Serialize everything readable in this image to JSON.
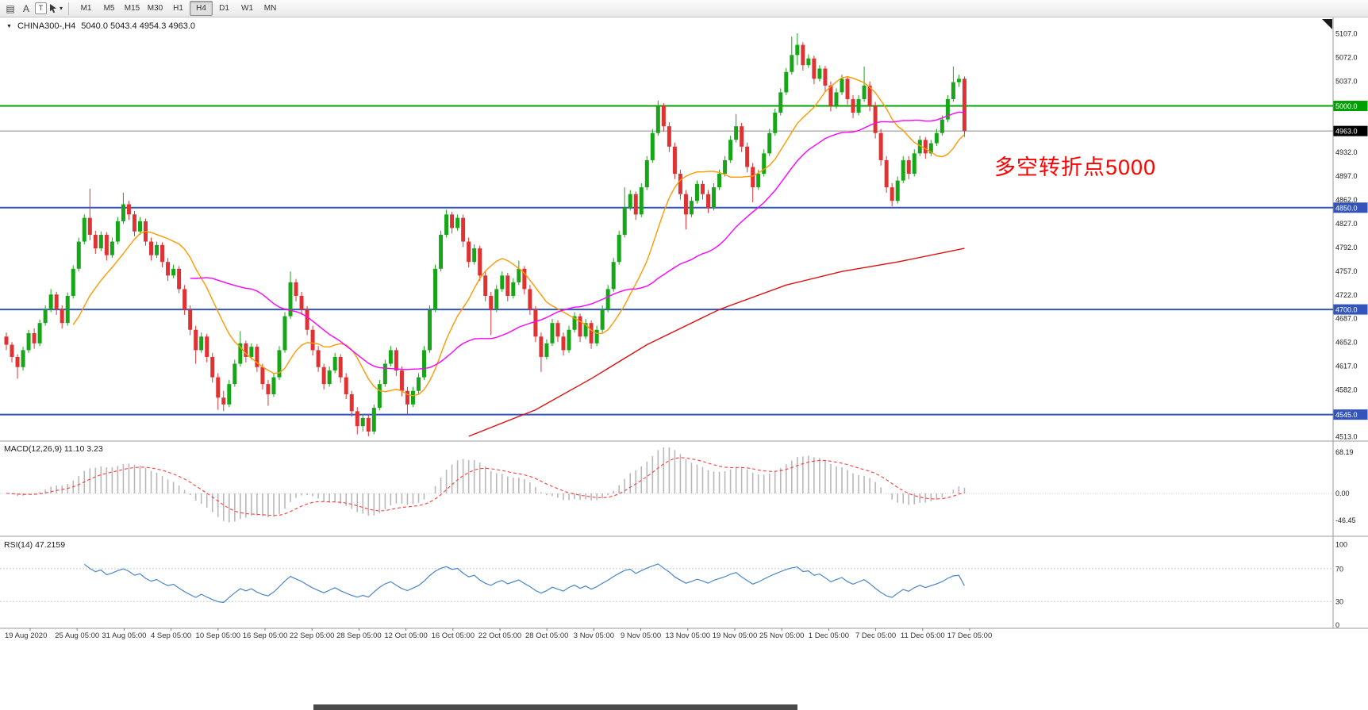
{
  "toolbar": {
    "icon_a": "A",
    "icon_t": "T",
    "timeframes": [
      "M1",
      "M5",
      "M15",
      "M30",
      "H1",
      "H4",
      "D1",
      "W1",
      "MN"
    ],
    "active_timeframe": "H4"
  },
  "icons": {
    "collapse_triangle": "▼",
    "dropdown_arrow": "▾",
    "chart_list": "▤"
  },
  "chart_header": {
    "symbol": "CHINA300-,H4",
    "ohlc": "5040.0 5043.4 4954.3 4963.0"
  },
  "annotation": {
    "text": "多空转折点5000",
    "color": "#FF0000"
  },
  "chart_data": {
    "type": "candlestick",
    "title": "CHINA300-,H4",
    "timeframe": "H4",
    "last_ohlc": {
      "open": 5040.0,
      "high": 5043.4,
      "low": 4954.3,
      "close": 4963.0
    },
    "ylim": [
      4513,
      5107
    ],
    "colors": {
      "up": "#17a617",
      "down": "#e03232",
      "ma_fast": "#ff9900",
      "ma_mid": "#ff00ff",
      "ma_slow": "#dd1111",
      "macd_hist": "#b8b8b8",
      "macd_signal": "#ff3b3b",
      "rsi": "#4a86c8",
      "level_green": "#00a000",
      "level_blue": "#3355bb",
      "current_line": "#8c8c8c"
    },
    "price_ticks": [
      5107.0,
      5072.0,
      5037.0,
      4932.0,
      4897.0,
      4862.0,
      4827.0,
      4792.0,
      4757.0,
      4722.0,
      4687.0,
      4652.0,
      4617.0,
      4582.0,
      4513.0
    ],
    "hlines": [
      {
        "price": 5000.0,
        "label": "5000.0",
        "color": "#00a000",
        "label_bg": "#00a000",
        "width": 2,
        "type": "level"
      },
      {
        "price": 4963.0,
        "label": "4963.0",
        "color": "#8c8c8c",
        "label_bg": "#000000",
        "width": 1,
        "type": "current"
      },
      {
        "price": 4850.0,
        "label": "4850.0",
        "color": "#3355bb",
        "label_bg": "#3355bb",
        "width": 2,
        "type": "level"
      },
      {
        "price": 4700.0,
        "label": "4700.0",
        "color": "#3355bb",
        "label_bg": "#3355bb",
        "width": 2,
        "type": "level"
      },
      {
        "price": 4545.0,
        "label": "4545.0",
        "color": "#3355bb",
        "label_bg": "#3355bb",
        "width": 2,
        "type": "level"
      }
    ],
    "ma": [
      {
        "name": "ma-fast",
        "period": 13,
        "color_key": "ma_fast"
      },
      {
        "name": "ma-mid",
        "period": 34,
        "color_key": "ma_mid"
      }
    ],
    "ma_slow_points": [
      [
        83,
        4513
      ],
      [
        95,
        4552
      ],
      [
        105,
        4598
      ],
      [
        115,
        4648
      ],
      [
        128,
        4700
      ],
      [
        140,
        4736
      ],
      [
        150,
        4756
      ],
      [
        160,
        4770
      ],
      [
        172,
        4790
      ]
    ],
    "indicators": [
      {
        "name": "MACD",
        "label": "MACD(12,26,9) 11.10 3.23",
        "params": [
          12,
          26,
          9
        ],
        "axis": [
          68.19,
          0.0,
          -46.45
        ]
      },
      {
        "name": "RSI",
        "label": "RSI(14) 47.2159",
        "period": 14,
        "axis": [
          100,
          70,
          30,
          0
        ],
        "levels": [
          70,
          30
        ]
      }
    ],
    "time_axis": [
      "19 Aug 2020",
      "25 Aug 05:00",
      "31 Aug 05:00",
      "4 Sep 05:00",
      "10 Sep 05:00",
      "16 Sep 05:00",
      "22 Sep 05:00",
      "28 Sep 05:00",
      "12 Oct 05:00",
      "16 Oct 05:00",
      "22 Oct 05:00",
      "28 Oct 05:00",
      "3 Nov 05:00",
      "9 Nov 05:00",
      "13 Nov 05:00",
      "19 Nov 05:00",
      "25 Nov 05:00",
      "1 Dec 05:00",
      "7 Dec 05:00",
      "11 Dec 05:00",
      "17 Dec 05:00"
    ],
    "candles": [
      [
        4660,
        4666,
        4640,
        4648
      ],
      [
        4648,
        4652,
        4622,
        4630
      ],
      [
        4630,
        4634,
        4598,
        4615
      ],
      [
        4615,
        4645,
        4610,
        4640
      ],
      [
        4640,
        4670,
        4636,
        4665
      ],
      [
        4665,
        4672,
        4642,
        4650
      ],
      [
        4650,
        4685,
        4646,
        4680
      ],
      [
        4680,
        4706,
        4676,
        4700
      ],
      [
        4700,
        4730,
        4696,
        4722
      ],
      [
        4722,
        4726,
        4692,
        4700
      ],
      [
        4700,
        4706,
        4672,
        4680
      ],
      [
        4680,
        4725,
        4676,
        4720
      ],
      [
        4720,
        4765,
        4716,
        4760
      ],
      [
        4760,
        4806,
        4756,
        4800
      ],
      [
        4800,
        4840,
        4796,
        4835
      ],
      [
        4835,
        4878,
        4802,
        4810
      ],
      [
        4810,
        4816,
        4782,
        4790
      ],
      [
        4790,
        4815,
        4786,
        4810
      ],
      [
        4810,
        4814,
        4772,
        4780
      ],
      [
        4780,
        4806,
        4776,
        4800
      ],
      [
        4800,
        4836,
        4796,
        4830
      ],
      [
        4830,
        4872,
        4826,
        4855
      ],
      [
        4855,
        4860,
        4832,
        4840
      ],
      [
        4840,
        4845,
        4808,
        4815
      ],
      [
        4815,
        4836,
        4810,
        4830
      ],
      [
        4830,
        4834,
        4794,
        4800
      ],
      [
        4800,
        4806,
        4772,
        4780
      ],
      [
        4780,
        4800,
        4776,
        4795
      ],
      [
        4795,
        4799,
        4762,
        4770
      ],
      [
        4770,
        4776,
        4742,
        4750
      ],
      [
        4750,
        4766,
        4746,
        4760
      ],
      [
        4760,
        4764,
        4724,
        4730
      ],
      [
        4730,
        4736,
        4692,
        4700
      ],
      [
        4700,
        4706,
        4662,
        4670
      ],
      [
        4670,
        4676,
        4620,
        4640
      ],
      [
        4640,
        4666,
        4636,
        4660
      ],
      [
        4660,
        4664,
        4622,
        4630
      ],
      [
        4630,
        4636,
        4592,
        4600
      ],
      [
        4600,
        4606,
        4552,
        4570
      ],
      [
        4570,
        4580,
        4550,
        4560
      ],
      [
        4560,
        4596,
        4556,
        4590
      ],
      [
        4590,
        4626,
        4586,
        4620
      ],
      [
        4620,
        4668,
        4616,
        4650
      ],
      [
        4650,
        4654,
        4622,
        4630
      ],
      [
        4630,
        4650,
        4626,
        4645
      ],
      [
        4645,
        4649,
        4608,
        4615
      ],
      [
        4615,
        4620,
        4582,
        4590
      ],
      [
        4590,
        4596,
        4558,
        4575
      ],
      [
        4575,
        4606,
        4571,
        4600
      ],
      [
        4600,
        4646,
        4596,
        4640
      ],
      [
        4640,
        4696,
        4636,
        4690
      ],
      [
        4690,
        4756,
        4686,
        4740
      ],
      [
        4740,
        4745,
        4712,
        4720
      ],
      [
        4720,
        4726,
        4692,
        4700
      ],
      [
        4700,
        4705,
        4662,
        4670
      ],
      [
        4670,
        4676,
        4632,
        4640
      ],
      [
        4640,
        4646,
        4608,
        4615
      ],
      [
        4615,
        4620,
        4582,
        4590
      ],
      [
        4590,
        4616,
        4586,
        4610
      ],
      [
        4610,
        4636,
        4606,
        4630
      ],
      [
        4630,
        4634,
        4592,
        4600
      ],
      [
        4600,
        4606,
        4568,
        4575
      ],
      [
        4575,
        4580,
        4542,
        4550
      ],
      [
        4550,
        4556,
        4516,
        4528
      ],
      [
        4528,
        4546,
        4520,
        4540
      ],
      [
        4540,
        4544,
        4513,
        4520
      ],
      [
        4520,
        4560,
        4516,
        4555
      ],
      [
        4555,
        4596,
        4551,
        4590
      ],
      [
        4590,
        4626,
        4586,
        4620
      ],
      [
        4620,
        4646,
        4616,
        4640
      ],
      [
        4640,
        4644,
        4602,
        4610
      ],
      [
        4610,
        4616,
        4572,
        4580
      ],
      [
        4580,
        4586,
        4545,
        4560
      ],
      [
        4560,
        4586,
        4556,
        4580
      ],
      [
        4580,
        4606,
        4576,
        4600
      ],
      [
        4600,
        4646,
        4596,
        4640
      ],
      [
        4640,
        4706,
        4636,
        4700
      ],
      [
        4700,
        4766,
        4696,
        4760
      ],
      [
        4760,
        4816,
        4756,
        4810
      ],
      [
        4810,
        4847,
        4806,
        4840
      ],
      [
        4840,
        4844,
        4812,
        4820
      ],
      [
        4820,
        4840,
        4816,
        4835
      ],
      [
        4835,
        4840,
        4792,
        4800
      ],
      [
        4800,
        4806,
        4762,
        4770
      ],
      [
        4770,
        4796,
        4766,
        4790
      ],
      [
        4790,
        4794,
        4742,
        4750
      ],
      [
        4750,
        4756,
        4712,
        4720
      ],
      [
        4720,
        4726,
        4662,
        4700
      ],
      [
        4700,
        4736,
        4696,
        4730
      ],
      [
        4730,
        4756,
        4726,
        4750
      ],
      [
        4750,
        4754,
        4712,
        4720
      ],
      [
        4720,
        4746,
        4716,
        4740
      ],
      [
        4740,
        4772,
        4736,
        4760
      ],
      [
        4760,
        4764,
        4722,
        4730
      ],
      [
        4730,
        4736,
        4692,
        4700
      ],
      [
        4700,
        4705,
        4652,
        4660
      ],
      [
        4660,
        4666,
        4608,
        4630
      ],
      [
        4630,
        4656,
        4626,
        4650
      ],
      [
        4650,
        4686,
        4646,
        4680
      ],
      [
        4680,
        4684,
        4652,
        4660
      ],
      [
        4660,
        4666,
        4632,
        4640
      ],
      [
        4640,
        4676,
        4636,
        4670
      ],
      [
        4670,
        4696,
        4666,
        4690
      ],
      [
        4690,
        4694,
        4652,
        4660
      ],
      [
        4660,
        4686,
        4656,
        4680
      ],
      [
        4680,
        4684,
        4642,
        4650
      ],
      [
        4650,
        4676,
        4646,
        4670
      ],
      [
        4670,
        4706,
        4666,
        4700
      ],
      [
        4700,
        4736,
        4696,
        4730
      ],
      [
        4730,
        4776,
        4726,
        4770
      ],
      [
        4770,
        4816,
        4766,
        4810
      ],
      [
        4810,
        4880,
        4806,
        4850
      ],
      [
        4850,
        4876,
        4846,
        4870
      ],
      [
        4870,
        4874,
        4832,
        4840
      ],
      [
        4840,
        4886,
        4836,
        4880
      ],
      [
        4880,
        4926,
        4876,
        4920
      ],
      [
        4920,
        4966,
        4916,
        4960
      ],
      [
        4960,
        5008,
        4956,
        5000
      ],
      [
        5000,
        5004,
        4962,
        4970
      ],
      [
        4970,
        4976,
        4932,
        4940
      ],
      [
        4940,
        4946,
        4892,
        4900
      ],
      [
        4900,
        4906,
        4862,
        4870
      ],
      [
        4870,
        4876,
        4818,
        4840
      ],
      [
        4840,
        4866,
        4836,
        4860
      ],
      [
        4860,
        4890,
        4856,
        4885
      ],
      [
        4885,
        4890,
        4862,
        4870
      ],
      [
        4870,
        4876,
        4842,
        4850
      ],
      [
        4850,
        4886,
        4846,
        4880
      ],
      [
        4880,
        4906,
        4876,
        4900
      ],
      [
        4900,
        4926,
        4896,
        4920
      ],
      [
        4920,
        4956,
        4916,
        4950
      ],
      [
        4950,
        4988,
        4946,
        4970
      ],
      [
        4970,
        4975,
        4932,
        4940
      ],
      [
        4940,
        4946,
        4902,
        4910
      ],
      [
        4910,
        4916,
        4858,
        4880
      ],
      [
        4880,
        4906,
        4876,
        4900
      ],
      [
        4900,
        4936,
        4896,
        4930
      ],
      [
        4930,
        4966,
        4926,
        4960
      ],
      [
        4960,
        4996,
        4956,
        4990
      ],
      [
        4990,
        5026,
        4986,
        5020
      ],
      [
        5020,
        5056,
        5016,
        5050
      ],
      [
        5050,
        5102,
        5046,
        5075
      ],
      [
        5075,
        5107,
        5060,
        5090
      ],
      [
        5090,
        5094,
        5052,
        5060
      ],
      [
        5060,
        5076,
        5056,
        5070
      ],
      [
        5070,
        5074,
        5032,
        5040
      ],
      [
        5040,
        5060,
        5036,
        5055
      ],
      [
        5055,
        5059,
        5022,
        5030
      ],
      [
        5030,
        5036,
        4992,
        5000
      ],
      [
        5000,
        5026,
        4996,
        5020
      ],
      [
        5020,
        5046,
        5016,
        5040
      ],
      [
        5040,
        5044,
        5002,
        5010
      ],
      [
        5010,
        5016,
        4982,
        4990
      ],
      [
        4990,
        5016,
        4986,
        5010
      ],
      [
        5010,
        5058,
        5006,
        5030
      ],
      [
        5030,
        5036,
        4992,
        5000
      ],
      [
        5000,
        5006,
        4952,
        4960
      ],
      [
        4960,
        4966,
        4912,
        4920
      ],
      [
        4920,
        4926,
        4872,
        4880
      ],
      [
        4880,
        4886,
        4852,
        4860
      ],
      [
        4860,
        4896,
        4856,
        4890
      ],
      [
        4890,
        4926,
        4886,
        4920
      ],
      [
        4920,
        4926,
        4892,
        4900
      ],
      [
        4900,
        4936,
        4896,
        4930
      ],
      [
        4930,
        4956,
        4926,
        4950
      ],
      [
        4950,
        4954,
        4922,
        4930
      ],
      [
        4930,
        4950,
        4926,
        4945
      ],
      [
        4945,
        4966,
        4941,
        4960
      ],
      [
        4960,
        4986,
        4956,
        4980
      ],
      [
        4980,
        5016,
        4976,
        5010
      ],
      [
        5010,
        5058,
        5006,
        5035
      ],
      [
        5035,
        5046,
        5028,
        5040
      ],
      [
        5040,
        5043.4,
        4954.3,
        4963
      ]
    ]
  }
}
